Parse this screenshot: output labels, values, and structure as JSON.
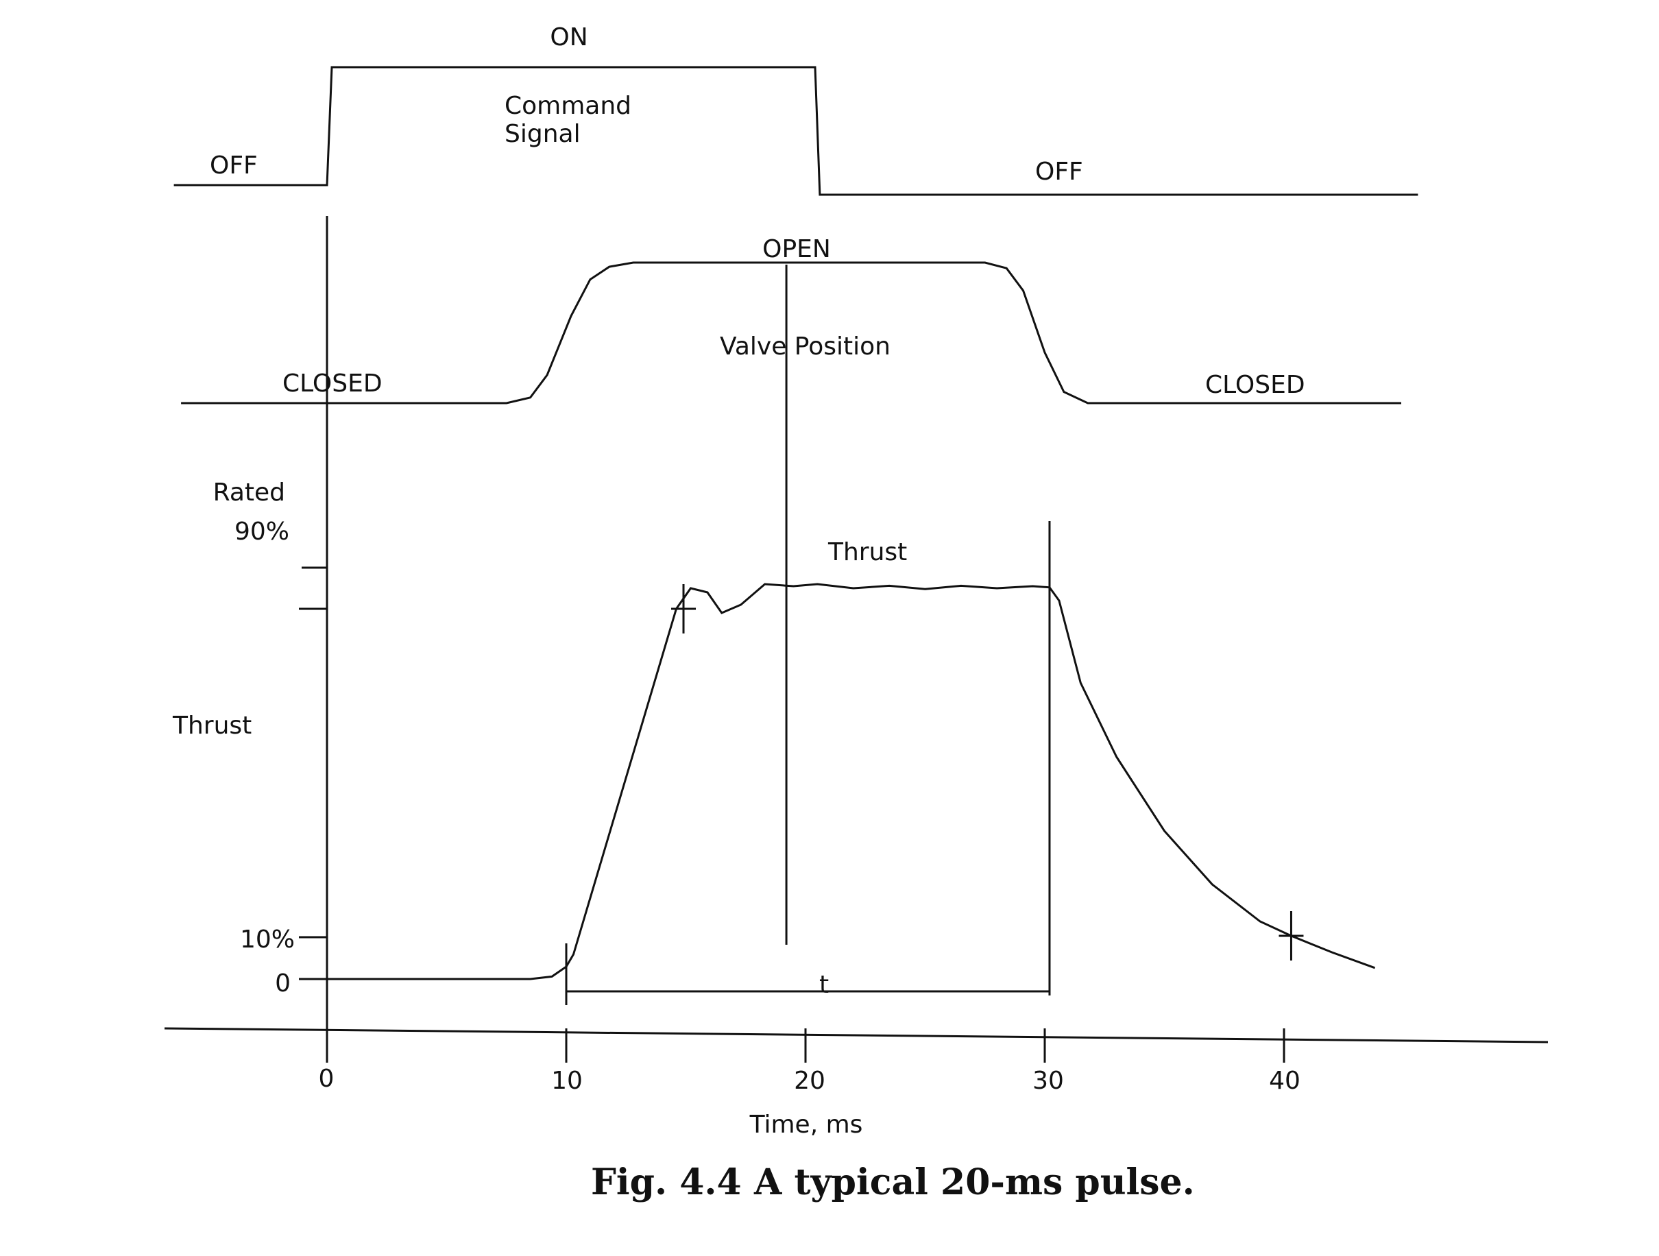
{
  "chart_data": {
    "type": "line",
    "xlabel": "Time, ms",
    "xlim": [
      -6.7,
      51.4
    ],
    "x_ticks": [
      0,
      10,
      20,
      30,
      40
    ],
    "caption": {
      "number": "Fig. 4.4",
      "text": "A typical 20-ms pulse."
    },
    "command_signal": {
      "name": "Command Signal",
      "name_lines": [
        "Command",
        "Signal"
      ],
      "on_label": "ON",
      "off_label_left": "OFF",
      "off_label_right": "OFF",
      "states": [
        {
          "x": -6.4,
          "y": 0
        },
        {
          "x": 0,
          "y": 0
        },
        {
          "x": 0.2,
          "y": 1
        },
        {
          "x": 20.4,
          "y": 1
        },
        {
          "x": 20.6,
          "y": 0
        },
        {
          "x": 45.6,
          "y": 0
        }
      ]
    },
    "valve_position": {
      "name": "Valve Position",
      "open_label": "OPEN",
      "closed_label_left": "CLOSED",
      "closed_label_right": "CLOSED",
      "points": [
        {
          "x": -6.1,
          "y": 0
        },
        {
          "x": 7.5,
          "y": 0
        },
        {
          "x": 8.5,
          "y": 0.04
        },
        {
          "x": 9.2,
          "y": 0.2
        },
        {
          "x": 10.2,
          "y": 0.62
        },
        {
          "x": 11.0,
          "y": 0.88
        },
        {
          "x": 11.8,
          "y": 0.97
        },
        {
          "x": 12.8,
          "y": 1
        },
        {
          "x": 27.5,
          "y": 1
        },
        {
          "x": 28.4,
          "y": 0.96
        },
        {
          "x": 29.1,
          "y": 0.8
        },
        {
          "x": 30.0,
          "y": 0.36
        },
        {
          "x": 30.8,
          "y": 0.08
        },
        {
          "x": 31.8,
          "y": 0
        },
        {
          "x": 44.9,
          "y": 0
        }
      ]
    },
    "thrust": {
      "name": "Thrust",
      "ylabel": "Thrust",
      "y_ticks": [
        {
          "label": "0",
          "value": 0
        },
        {
          "label": "10%",
          "value": 10
        },
        {
          "label": "90%",
          "value": 90
        },
        {
          "label": "Rated",
          "value": 100
        }
      ],
      "points": [
        {
          "x": 0,
          "y": 0
        },
        {
          "x": 8.5,
          "y": 0
        },
        {
          "x": 9.4,
          "y": 0.6
        },
        {
          "x": 10.0,
          "y": 3
        },
        {
          "x": 10.3,
          "y": 6
        },
        {
          "x": 14.6,
          "y": 90
        },
        {
          "x": 15.2,
          "y": 95
        },
        {
          "x": 15.9,
          "y": 94
        },
        {
          "x": 16.5,
          "y": 89
        },
        {
          "x": 17.3,
          "y": 91
        },
        {
          "x": 18.3,
          "y": 96
        },
        {
          "x": 19.5,
          "y": 95.5
        },
        {
          "x": 20.5,
          "y": 96
        },
        {
          "x": 22,
          "y": 95
        },
        {
          "x": 23.5,
          "y": 95.6
        },
        {
          "x": 25,
          "y": 94.8
        },
        {
          "x": 26.5,
          "y": 95.6
        },
        {
          "x": 28,
          "y": 95.0
        },
        {
          "x": 29.5,
          "y": 95.5
        },
        {
          "x": 30.2,
          "y": 95.2
        },
        {
          "x": 30.6,
          "y": 92
        },
        {
          "x": 31.5,
          "y": 72
        },
        {
          "x": 33,
          "y": 54
        },
        {
          "x": 35,
          "y": 36
        },
        {
          "x": 37,
          "y": 23
        },
        {
          "x": 39,
          "y": 14
        },
        {
          "x": 40.3,
          "y": 10.5
        },
        {
          "x": 42,
          "y": 6.5
        },
        {
          "x": 43.8,
          "y": 2.7
        }
      ],
      "markers": [
        {
          "x": 14.9,
          "y": 90
        },
        {
          "x": 40.3,
          "y": 10.5
        }
      ],
      "interval_label": "t",
      "interval": {
        "start": 10,
        "end": 30.2,
        "y": -3
      }
    }
  }
}
